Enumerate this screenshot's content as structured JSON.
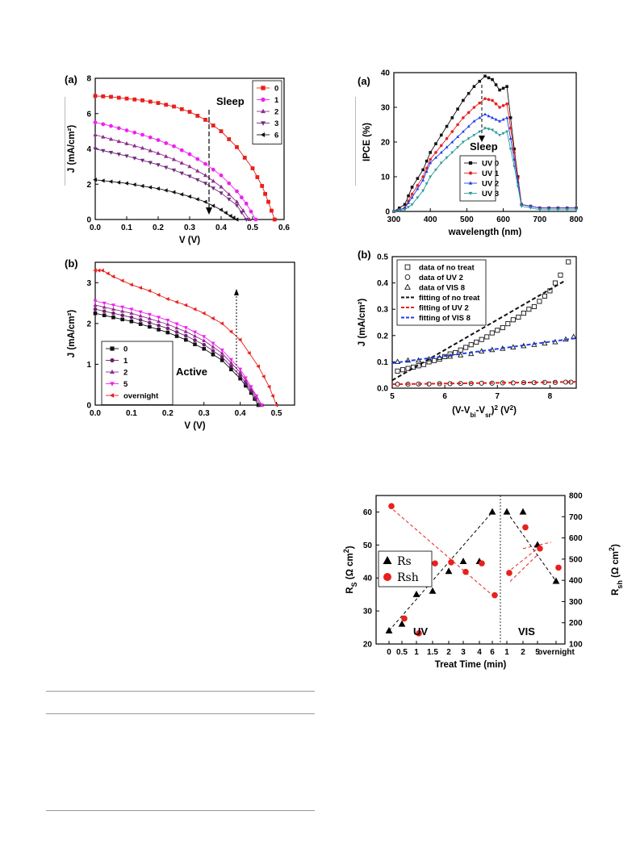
{
  "chart_data": [
    {
      "type": "line",
      "panel": "(a)",
      "xlabel": "V (V)",
      "ylabel": "J (mA/cm²)",
      "xlim": [
        0,
        0.6
      ],
      "ylim": [
        0,
        8
      ],
      "xticks": [
        "0.0",
        "0.1",
        "0.2",
        "0.3",
        "0.4",
        "0.5",
        "0.6"
      ],
      "yticks": [
        "0",
        "2",
        "4",
        "6",
        "8"
      ],
      "legend": "top-right",
      "annotation": "Sleep",
      "series": [
        {
          "name": "0",
          "color": "#e8201c",
          "marker": "square",
          "x": [
            0.0,
            0.05,
            0.1,
            0.15,
            0.2,
            0.25,
            0.3,
            0.35,
            0.4,
            0.45,
            0.5,
            0.53,
            0.55,
            0.57
          ],
          "y": [
            7.0,
            6.95,
            6.85,
            6.75,
            6.6,
            6.4,
            6.1,
            5.65,
            5.0,
            4.1,
            2.9,
            1.9,
            1.0,
            0.0
          ]
        },
        {
          "name": "1",
          "color": "#ee22ee",
          "marker": "circle",
          "x": [
            0.0,
            0.05,
            0.1,
            0.15,
            0.2,
            0.25,
            0.3,
            0.35,
            0.4,
            0.45,
            0.48,
            0.51
          ],
          "y": [
            5.5,
            5.3,
            5.05,
            4.8,
            4.5,
            4.15,
            3.7,
            3.15,
            2.5,
            1.6,
            0.9,
            0.0
          ]
        },
        {
          "name": "2",
          "color": "#8e2b8e",
          "marker": "triangle-up",
          "x": [
            0.0,
            0.05,
            0.1,
            0.15,
            0.2,
            0.25,
            0.3,
            0.35,
            0.4,
            0.45,
            0.49
          ],
          "y": [
            4.8,
            4.55,
            4.3,
            4.05,
            3.75,
            3.4,
            3.0,
            2.5,
            1.85,
            1.0,
            0.0
          ]
        },
        {
          "name": "3",
          "color": "#6e2b7e",
          "marker": "triangle-down",
          "x": [
            0.0,
            0.05,
            0.1,
            0.15,
            0.2,
            0.25,
            0.3,
            0.35,
            0.4,
            0.45,
            0.48
          ],
          "y": [
            4.0,
            3.8,
            3.6,
            3.35,
            3.1,
            2.8,
            2.45,
            2.05,
            1.5,
            0.8,
            0.0
          ]
        },
        {
          "name": "6",
          "color": "#111111",
          "marker": "triangle-left",
          "x": [
            0.0,
            0.05,
            0.1,
            0.15,
            0.2,
            0.25,
            0.3,
            0.35,
            0.4,
            0.43,
            0.45
          ],
          "y": [
            2.25,
            2.15,
            2.05,
            1.9,
            1.75,
            1.55,
            1.3,
            1.0,
            0.55,
            0.2,
            0.0
          ]
        }
      ]
    },
    {
      "type": "line",
      "panel": "(b)",
      "xlabel": "V (V)",
      "ylabel": "J (mA/cm²)",
      "xlim": [
        0,
        0.55
      ],
      "ylim": [
        0,
        3.5
      ],
      "xticks": [
        "0.0",
        "0.1",
        "0.2",
        "0.3",
        "0.4",
        "0.5"
      ],
      "yticks": [
        "0",
        "1",
        "2",
        "3"
      ],
      "legend": "bottom-left",
      "annotation": "Active",
      "series": [
        {
          "name": "0",
          "color": "#111111",
          "marker": "square",
          "x": [
            0.0,
            0.05,
            0.1,
            0.15,
            0.2,
            0.25,
            0.3,
            0.35,
            0.4,
            0.43,
            0.45
          ],
          "y": [
            2.25,
            2.15,
            2.05,
            1.92,
            1.78,
            1.6,
            1.38,
            1.1,
            0.65,
            0.3,
            0.0
          ]
        },
        {
          "name": "1",
          "color": "#6e1f6e",
          "marker": "circle",
          "x": [
            0.0,
            0.05,
            0.1,
            0.15,
            0.2,
            0.25,
            0.3,
            0.35,
            0.4,
            0.43,
            0.455
          ],
          "y": [
            2.35,
            2.25,
            2.15,
            2.02,
            1.88,
            1.7,
            1.48,
            1.18,
            0.72,
            0.35,
            0.0
          ]
        },
        {
          "name": "2",
          "color": "#8e2b8e",
          "marker": "triangle-up",
          "x": [
            0.0,
            0.05,
            0.1,
            0.15,
            0.2,
            0.25,
            0.3,
            0.35,
            0.4,
            0.43,
            0.46
          ],
          "y": [
            2.45,
            2.35,
            2.25,
            2.12,
            1.98,
            1.8,
            1.58,
            1.27,
            0.8,
            0.4,
            0.0
          ]
        },
        {
          "name": "5",
          "color": "#ee22ee",
          "marker": "triangle-down",
          "x": [
            0.0,
            0.05,
            0.1,
            0.15,
            0.2,
            0.25,
            0.3,
            0.35,
            0.4,
            0.43,
            0.46
          ],
          "y": [
            2.55,
            2.45,
            2.35,
            2.22,
            2.08,
            1.9,
            1.68,
            1.35,
            0.88,
            0.45,
            0.0
          ]
        },
        {
          "name": "overnight",
          "color": "#e8201c",
          "marker": "triangle-left",
          "x": [
            0.0,
            0.02,
            0.05,
            0.1,
            0.15,
            0.2,
            0.25,
            0.3,
            0.35,
            0.4,
            0.45,
            0.48,
            0.5
          ],
          "y": [
            3.3,
            3.3,
            3.15,
            2.95,
            2.8,
            2.6,
            2.45,
            2.25,
            2.0,
            1.6,
            0.95,
            0.45,
            0.0
          ]
        }
      ]
    },
    {
      "type": "line",
      "panel": "(a)",
      "xlabel": "wavelength (nm)",
      "ylabel": "IPCE (%)",
      "xlim": [
        300,
        800
      ],
      "ylim": [
        0,
        40
      ],
      "xticks": [
        "300",
        "400",
        "500",
        "600",
        "700",
        "800"
      ],
      "yticks": [
        "0",
        "10",
        "20",
        "30",
        "40"
      ],
      "legend": "bottom-center",
      "annotation": "Sleep",
      "series": [
        {
          "name": "UV 0",
          "color": "#111111",
          "marker": "square",
          "x": [
            300,
            330,
            350,
            380,
            400,
            430,
            460,
            490,
            520,
            550,
            570,
            590,
            610,
            630,
            650,
            700,
            750,
            800
          ],
          "y": [
            0,
            2,
            7,
            12,
            17,
            22,
            27,
            32,
            36,
            39,
            38,
            35,
            36,
            18,
            2,
            1,
            1,
            1
          ]
        },
        {
          "name": "UV 1",
          "color": "#e8201c",
          "marker": "circle",
          "x": [
            300,
            330,
            350,
            380,
            400,
            430,
            460,
            490,
            520,
            550,
            570,
            590,
            610,
            630,
            650,
            700,
            750,
            800
          ],
          "y": [
            0,
            1,
            5,
            10,
            15,
            19,
            23,
            27,
            30,
            32.5,
            32,
            30,
            31,
            17,
            2,
            1,
            1,
            1
          ]
        },
        {
          "name": "UV 2",
          "color": "#1f3fe8",
          "marker": "triangle-up",
          "x": [
            300,
            330,
            350,
            380,
            400,
            430,
            460,
            490,
            520,
            550,
            570,
            590,
            610,
            630,
            650,
            700,
            750,
            800
          ],
          "y": [
            0,
            1,
            4,
            9,
            14,
            17,
            20,
            23,
            26,
            28,
            27,
            26,
            27,
            15,
            2,
            1,
            1,
            1
          ]
        },
        {
          "name": "UV 3",
          "color": "#2a9a9a",
          "marker": "triangle-down",
          "x": [
            300,
            330,
            350,
            380,
            400,
            430,
            460,
            490,
            520,
            550,
            570,
            590,
            610,
            630,
            650,
            700,
            750,
            800
          ],
          "y": [
            0,
            0.5,
            2,
            6,
            10,
            14,
            17,
            20,
            22,
            24,
            23.5,
            22,
            23,
            13,
            1.5,
            0.5,
            0.5,
            0.5
          ]
        }
      ]
    },
    {
      "type": "scatter",
      "panel": "(b)",
      "xlabel": "(V-V",
      "xlabel_sub1": "bi",
      "xlabel_mid": "-V",
      "xlabel_sub2": "sr",
      "xlabel_end": ")",
      "xlabel_sup": "2",
      "xlabel_unit": " (V",
      "xlabel_unit_sup": "2",
      "xlabel_unit_end": ")",
      "ylabel": "J (mA/cm²)",
      "xlim": [
        5,
        8.5
      ],
      "ylim": [
        0,
        0.5
      ],
      "xticks": [
        "5",
        "6",
        "7",
        "8"
      ],
      "yticks": [
        "0.0",
        "0.1",
        "0.2",
        "0.3",
        "0.4",
        "0.5"
      ],
      "legend": "top-left",
      "series": [
        {
          "name": "data of no treat",
          "color": "#111111",
          "marker": "open-square",
          "x": [
            5.1,
            5.2,
            5.3,
            5.4,
            5.5,
            5.6,
            5.7,
            5.8,
            5.9,
            6.0,
            6.1,
            6.2,
            6.3,
            6.4,
            6.5,
            6.6,
            6.7,
            6.8,
            6.9,
            7.0,
            7.1,
            7.2,
            7.3,
            7.4,
            7.5,
            7.6,
            7.7,
            7.8,
            7.9,
            8.0,
            8.1,
            8.2,
            8.35
          ],
          "y": [
            0.065,
            0.07,
            0.075,
            0.08,
            0.085,
            0.09,
            0.1,
            0.105,
            0.11,
            0.12,
            0.13,
            0.135,
            0.145,
            0.155,
            0.165,
            0.175,
            0.185,
            0.195,
            0.21,
            0.22,
            0.23,
            0.245,
            0.26,
            0.27,
            0.285,
            0.3,
            0.31,
            0.33,
            0.35,
            0.37,
            0.4,
            0.43,
            0.48
          ]
        },
        {
          "name": "data of UV 2",
          "color": "#111111",
          "marker": "open-circle",
          "x": [
            5.1,
            5.3,
            5.5,
            5.7,
            5.9,
            6.1,
            6.3,
            6.5,
            6.7,
            6.9,
            7.1,
            7.3,
            7.5,
            7.7,
            7.9,
            8.1,
            8.3,
            8.4
          ],
          "y": [
            0.015,
            0.015,
            0.016,
            0.016,
            0.017,
            0.017,
            0.018,
            0.018,
            0.019,
            0.019,
            0.02,
            0.02,
            0.021,
            0.021,
            0.022,
            0.022,
            0.023,
            0.023
          ]
        },
        {
          "name": "data of VIS 8",
          "color": "#111111",
          "marker": "open-triangle",
          "x": [
            5.1,
            5.3,
            5.5,
            5.7,
            5.9,
            6.1,
            6.3,
            6.5,
            6.7,
            6.9,
            7.1,
            7.3,
            7.5,
            7.7,
            7.9,
            8.1,
            8.3,
            8.45
          ],
          "y": [
            0.1,
            0.105,
            0.105,
            0.11,
            0.115,
            0.12,
            0.125,
            0.13,
            0.14,
            0.145,
            0.15,
            0.155,
            0.16,
            0.165,
            0.17,
            0.175,
            0.185,
            0.195
          ]
        },
        {
          "name": "fitting of no treat",
          "color": "#111111",
          "marker": "dash",
          "x": [
            5.0,
            8.3
          ],
          "y": [
            0.03,
            0.41
          ]
        },
        {
          "name": "fitting of UV 2",
          "color": "#e8201c",
          "marker": "dash",
          "x": [
            5.0,
            8.5
          ],
          "y": [
            0.015,
            0.024
          ]
        },
        {
          "name": "fitting of VIS 8",
          "color": "#1f3fe8",
          "marker": "dash",
          "x": [
            5.0,
            8.5
          ],
          "y": [
            0.095,
            0.19
          ]
        }
      ]
    },
    {
      "type": "scatter",
      "categories": [
        "0",
        "0.5",
        "1",
        "1.5",
        "2",
        "3",
        "4",
        "6",
        "1",
        "2",
        "5",
        "overnight"
      ],
      "xlabel": "Treat Time (min)",
      "ylabel_left": "R",
      "ylabel_left_sub": "S",
      "ylabel_left_unit": " (Ω cm",
      "ylabel_left_sup": "2",
      "ylabel_left_end": ")",
      "ylabel_right": "R",
      "ylabel_right_sub": "sh",
      "ylabel_right_unit": " (Ω cm",
      "ylabel_right_sup": "2",
      "ylabel_right_end": ")",
      "ylim_left": [
        20,
        65
      ],
      "ylim_right": [
        100,
        800
      ],
      "yticks_left": [
        "20",
        "30",
        "40",
        "50",
        "60"
      ],
      "yticks_right": [
        "100",
        "200",
        "300",
        "400",
        "500",
        "600",
        "700",
        "800"
      ],
      "region_labels": [
        "UV",
        "VIS"
      ],
      "legend": "middle-left",
      "series": [
        {
          "name": "Rs",
          "color": "#000000",
          "marker": "triangle-up",
          "axis": "left",
          "values": [
            24,
            26,
            35,
            36,
            42,
            45,
            45,
            60,
            60,
            60,
            50,
            39
          ]
        },
        {
          "name": "Rsh",
          "color": "#e8201c",
          "marker": "circle",
          "axis": "right",
          "values": [
            750,
            220,
            150,
            480,
            485,
            440,
            480,
            330,
            435,
            650,
            550,
            460
          ]
        }
      ]
    }
  ]
}
